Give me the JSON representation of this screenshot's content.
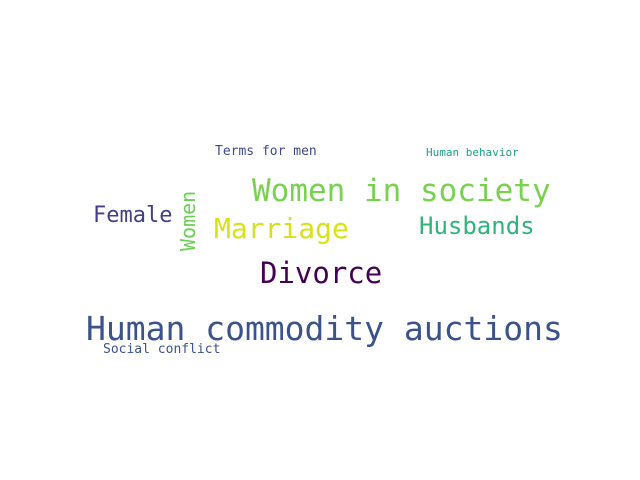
{
  "words": [
    {
      "id": "human-commodity-auctions",
      "text": "Human commodity auctions",
      "color": "#3b528b"
    },
    {
      "id": "women-in-society",
      "text": "Women in society",
      "color": "#7ad151"
    },
    {
      "id": "divorce",
      "text": "Divorce",
      "color": "#440154"
    },
    {
      "id": "marriage",
      "text": "Marriage",
      "color": "#d8e219"
    },
    {
      "id": "husbands",
      "text": "Husbands",
      "color": "#2fb47c"
    },
    {
      "id": "female",
      "text": "Female",
      "color": "#433e85"
    },
    {
      "id": "women",
      "text": "Women",
      "color": "#6ece58"
    },
    {
      "id": "terms-for-men",
      "text": "Terms for men",
      "color": "#3e4a89"
    },
    {
      "id": "social-conflict",
      "text": "Social conflict",
      "color": "#3b528b"
    },
    {
      "id": "human-behavior",
      "text": "Human behavior",
      "color": "#1f9e89"
    }
  ]
}
